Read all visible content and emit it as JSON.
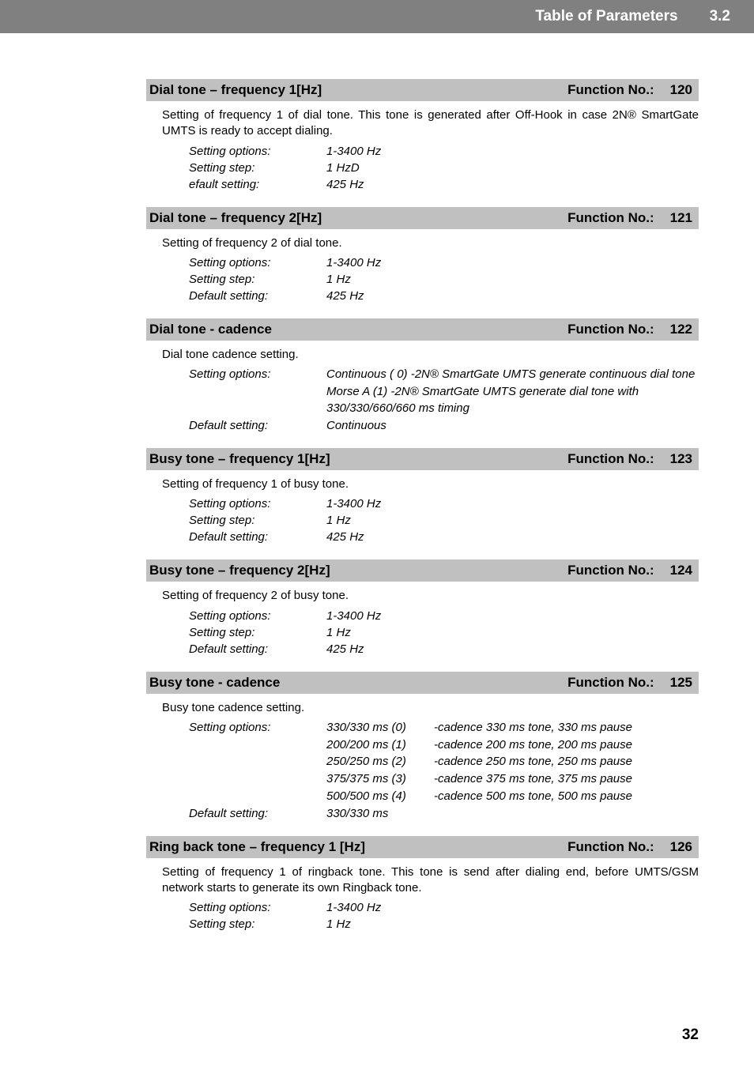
{
  "banner": {
    "title": "Table of Parameters",
    "section": "3.2"
  },
  "page_number": "32",
  "params": [
    {
      "name": "Dial tone – frequency 1[Hz]",
      "fn_label": "Function No.:",
      "fn_no": "120",
      "desc": "Setting of frequency 1 of dial tone. This tone is generated after Off-Hook in case 2N® SmartGate UMTS is ready to accept dialing.",
      "rows": [
        {
          "k": "Setting options:",
          "v": "1-3400 Hz"
        },
        {
          "k": "Setting step:",
          "v": "1 HzD"
        },
        {
          "k": "efault setting:",
          "v": "425 Hz"
        }
      ]
    },
    {
      "name": "Dial tone – frequency 2[Hz]",
      "fn_label": "Function No.:",
      "fn_no": "121",
      "desc": "Setting of frequency 2 of dial tone.",
      "rows": [
        {
          "k": "Setting options:",
          "v": "1-3400 Hz"
        },
        {
          "k": "Setting step:",
          "v": "1 Hz"
        },
        {
          "k": "Default setting:",
          "v": "425 Hz"
        }
      ]
    },
    {
      "name": "Dial tone - cadence",
      "fn_label": "Function No.:",
      "fn_no": "122",
      "desc": "Dial tone cadence setting.",
      "rows_multi": [
        {
          "k": "Setting options:",
          "lines": [
            "Continuous ( 0) -2N® SmartGate UMTS generate continuous dial tone",
            "Morse A (1) -2N® SmartGate UMTS generate dial tone with 330/330/660/660 ms timing"
          ]
        },
        {
          "k": "Default setting:",
          "lines": [
            "Continuous"
          ]
        }
      ]
    },
    {
      "name": "Busy tone – frequency 1[Hz]",
      "fn_label": "Function No.:",
      "fn_no": "123",
      "desc": "Setting of frequency 1 of busy tone.",
      "rows": [
        {
          "k": "Setting options:",
          "v": "1-3400 Hz"
        },
        {
          "k": "Setting step:",
          "v": "1 Hz"
        },
        {
          "k": "Default setting:",
          "v": "425 Hz"
        }
      ]
    },
    {
      "name": "Busy tone – frequency 2[Hz]",
      "fn_label": "Function No.:",
      "fn_no": "124",
      "desc": "Setting of frequency 2 of busy tone.",
      "rows": [
        {
          "k": "Setting options:",
          "v": "1-3400 Hz"
        },
        {
          "k": "Setting step:",
          "v": "1 Hz"
        },
        {
          "k": "Default setting:",
          "v": "425 Hz"
        }
      ]
    },
    {
      "name": "Busy tone - cadence",
      "fn_label": "Function No.:",
      "fn_no": "125",
      "desc": "Busy tone cadence setting.",
      "cadence": {
        "k": "Setting options:",
        "opts": [
          {
            "code": "330/330 ms (0)",
            "text": "-cadence 330 ms tone, 330 ms pause"
          },
          {
            "code": "200/200 ms (1)",
            "text": "-cadence 200 ms tone, 200 ms pause"
          },
          {
            "code": "250/250 ms (2)",
            "text": "-cadence 250 ms tone, 250 ms pause"
          },
          {
            "code": "375/375 ms (3)",
            "text": "-cadence 375 ms tone, 375 ms pause"
          },
          {
            "code": "500/500 ms (4)",
            "text": "-cadence 500 ms tone, 500 ms pause"
          }
        ]
      },
      "rows": [
        {
          "k": "Default setting:",
          "v": "330/330 ms"
        }
      ]
    },
    {
      "name": "Ring back tone – frequency 1 [Hz]",
      "fn_label": "Function No.:",
      "fn_no": "126",
      "desc": "Setting of frequency 1 of ringback tone. This tone is send after dialing end, before UMTS/GSM network starts to generate its own Ringback tone.",
      "rows": [
        {
          "k": "Setting options:",
          "v": "1-3400 Hz"
        },
        {
          "k": "Setting step:",
          "v": "1 Hz"
        }
      ]
    }
  ]
}
